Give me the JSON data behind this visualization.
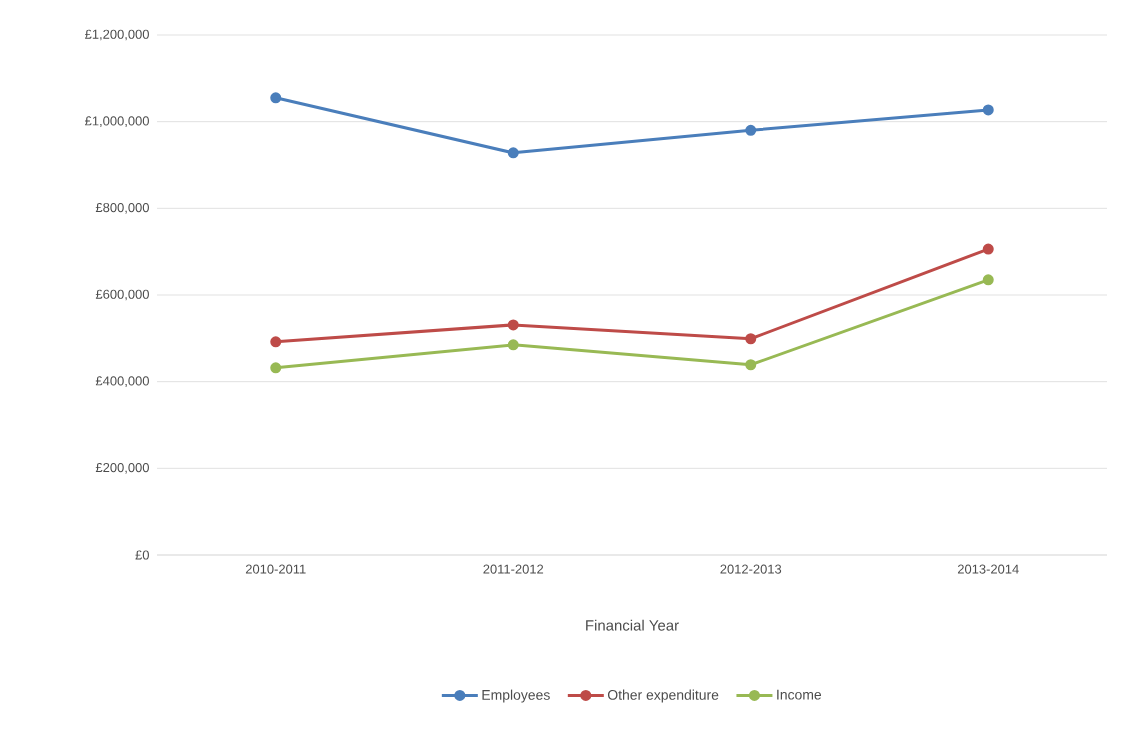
{
  "chart_data": {
    "type": "line",
    "xlabel": "Financial Year",
    "categories": [
      "2010-2011",
      "2011-2012",
      "2012-2013",
      "2013-2014"
    ],
    "series": [
      {
        "name": "Employees",
        "color": "#4a7ebb",
        "values": [
          1055000,
          928000,
          980000,
          1027000
        ]
      },
      {
        "name": "Other expenditure",
        "color": "#be4b48",
        "values": [
          492000,
          531000,
          499000,
          706000
        ]
      },
      {
        "name": "Income",
        "color": "#98b954",
        "values": [
          432000,
          485000,
          439000,
          635000
        ]
      }
    ],
    "ylim": [
      0,
      1200000
    ],
    "yticks": [
      {
        "value": 0,
        "label": "£0"
      },
      {
        "value": 200000,
        "label": "£200,000"
      },
      {
        "value": 400000,
        "label": "£400,000"
      },
      {
        "value": 600000,
        "label": "£600,000"
      },
      {
        "value": 800000,
        "label": "£800,000"
      },
      {
        "value": 1000000,
        "label": "£1,000,000"
      },
      {
        "value": 1200000,
        "label": "£1,200,000"
      }
    ],
    "grid": "y",
    "legend": "bottom",
    "marker": "circle",
    "line_style": "solid"
  }
}
